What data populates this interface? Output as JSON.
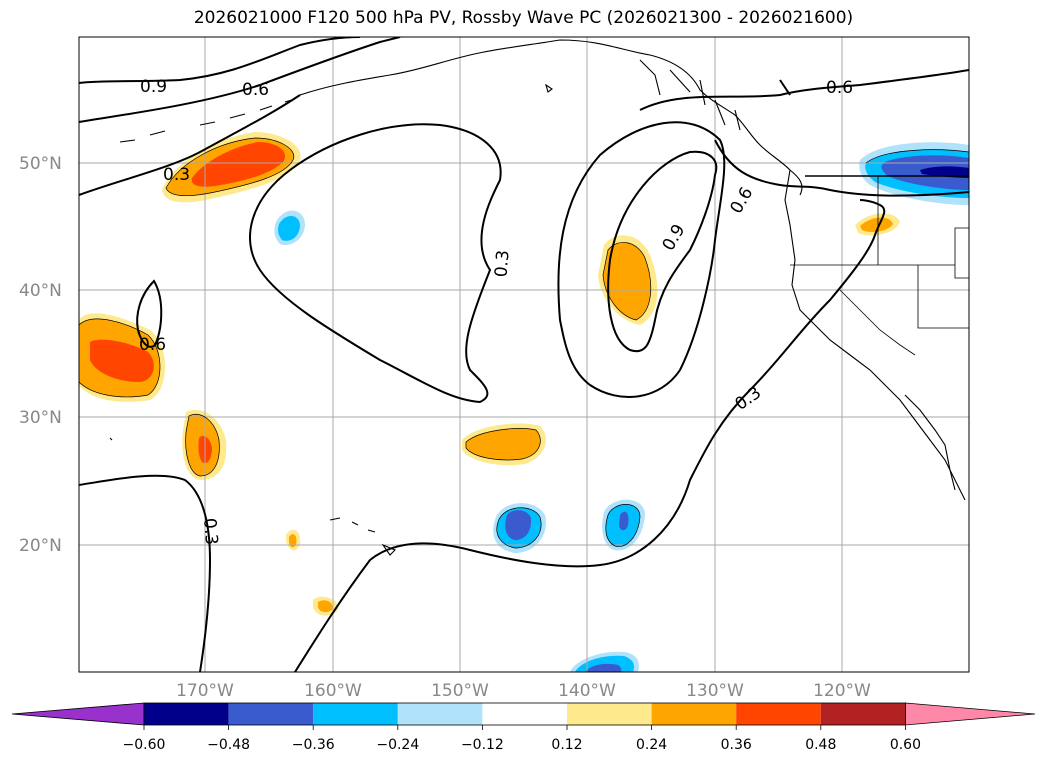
{
  "title": "2026021000 F120 500 hPa PV, Rossby Wave PC (2026021300 - 2026021600)",
  "latitude_labels": [
    "50°N",
    "40°N",
    "30°N",
    "20°N"
  ],
  "longitude_labels": [
    "170°W",
    "160°W",
    "150°W",
    "140°W",
    "130°W",
    "120°W"
  ],
  "contour_labels": [
    "0.9",
    "0.6",
    "0.3",
    "0.6",
    "0.3",
    "0.9",
    "0.6",
    "0.6",
    "0.3",
    "0.3"
  ],
  "colorbar": {
    "tick_labels": [
      "−0.60",
      "−0.48",
      "−0.36",
      "−0.24",
      "−0.12",
      "0.12",
      "0.24",
      "0.36",
      "0.48",
      "0.60"
    ],
    "colors": [
      "#9932cc",
      "#00008b",
      "#3a5bcd",
      "#00bfff",
      "#b0e2fb",
      "#ffffff",
      "#fee98c",
      "#ffa500",
      "#ff4500",
      "#b22222",
      "#ff88a8"
    ]
  },
  "fill_colors": {
    "pos_light": "#fee98c",
    "pos_mid": "#ffa500",
    "pos_strong": "#ff4500",
    "neg_light": "#b0e2fb",
    "neg_mid": "#00bfff",
    "neg_strong": "#3a5bcd",
    "neg_stronger": "#00008b"
  }
}
